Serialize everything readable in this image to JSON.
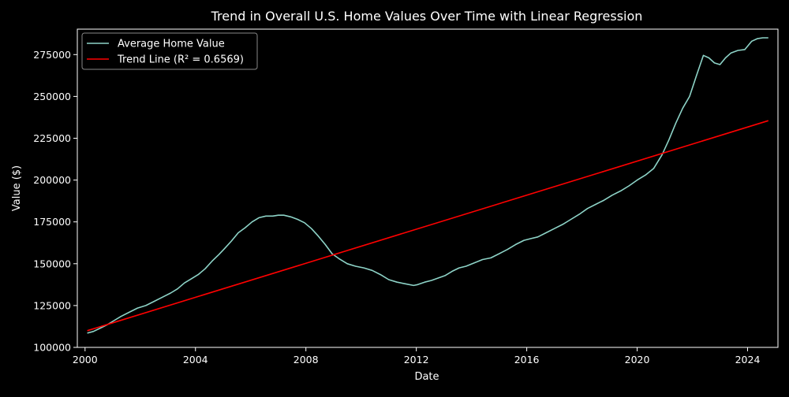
{
  "chart_data": {
    "type": "line",
    "title": "Trend in Overall U.S. Home Values Over Time with Linear Regression",
    "xlabel": "Date",
    "ylabel": "Value ($)",
    "xlim": [
      1999.72,
      2025.1
    ],
    "ylim": [
      100000,
      290200
    ],
    "x_ticks": [
      2000,
      2004,
      2008,
      2012,
      2016,
      2020,
      2024
    ],
    "y_ticks": [
      100000,
      125000,
      150000,
      175000,
      200000,
      225000,
      250000,
      275000
    ],
    "grid": false,
    "legend_position": "top-left",
    "background_color": "#000000",
    "text_color": "#ffffff",
    "series": [
      {
        "name": "Average Home Value",
        "color": "#8dd3c7",
        "x": [
          2000.08,
          2000.3,
          2000.55,
          2000.8,
          2001.05,
          2001.3,
          2001.6,
          2001.9,
          2002.2,
          2002.5,
          2002.8,
          2003.1,
          2003.35,
          2003.6,
          2003.85,
          2004.1,
          2004.35,
          2004.6,
          2004.85,
          2005.05,
          2005.3,
          2005.55,
          2005.8,
          2006.05,
          2006.3,
          2006.55,
          2006.8,
          2007.0,
          2007.2,
          2007.45,
          2007.7,
          2007.95,
          2008.2,
          2008.45,
          2008.7,
          2008.95,
          2009.2,
          2009.5,
          2009.8,
          2010.1,
          2010.4,
          2010.7,
          2011.0,
          2011.3,
          2011.6,
          2011.9,
          2012.05,
          2012.3,
          2012.55,
          2012.8,
          2013.05,
          2013.3,
          2013.55,
          2013.8,
          2014.1,
          2014.4,
          2014.7,
          2015.0,
          2015.3,
          2015.6,
          2015.9,
          2016.15,
          2016.4,
          2016.7,
          2017.0,
          2017.3,
          2017.6,
          2017.9,
          2018.2,
          2018.5,
          2018.8,
          2019.1,
          2019.4,
          2019.7,
          2020.0,
          2020.3,
          2020.6,
          2020.9,
          2021.15,
          2021.4,
          2021.65,
          2021.9,
          2022.15,
          2022.4,
          2022.6,
          2022.8,
          2023.0,
          2023.2,
          2023.4,
          2023.65,
          2023.9,
          2024.15,
          2024.35,
          2024.55,
          2024.75
        ],
        "values": [
          108500,
          109500,
          111500,
          113500,
          116000,
          118500,
          121000,
          123500,
          125000,
          127500,
          130000,
          132500,
          135000,
          138500,
          141000,
          143500,
          147000,
          151500,
          155500,
          159000,
          163500,
          168500,
          171500,
          175000,
          177500,
          178500,
          178500,
          179000,
          179000,
          178000,
          176500,
          174500,
          171000,
          166500,
          161500,
          156000,
          153000,
          150000,
          148500,
          147500,
          146000,
          143500,
          140500,
          139000,
          138000,
          137000,
          137500,
          139000,
          140000,
          141500,
          143000,
          145500,
          147500,
          148500,
          150500,
          152500,
          153500,
          156000,
          158500,
          161500,
          164000,
          165000,
          166000,
          168500,
          171000,
          173500,
          176500,
          179500,
          183000,
          185500,
          188000,
          191000,
          193500,
          196500,
          200000,
          203000,
          207000,
          215000,
          224000,
          234000,
          243000,
          250000,
          262500,
          274500,
          273000,
          270000,
          269000,
          273000,
          276000,
          277500,
          278000,
          283000,
          284500,
          285000,
          285000
        ]
      },
      {
        "name": "Trend Line (R² = 0.6569)",
        "color": "#ff0000",
        "x": [
          2000.08,
          2024.75
        ],
        "values": [
          110000,
          235500
        ]
      }
    ]
  }
}
